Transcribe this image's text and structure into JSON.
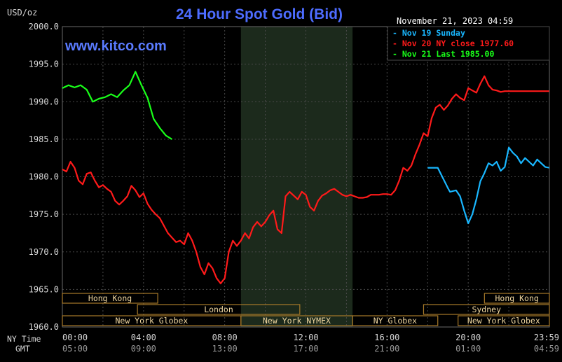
{
  "header": {
    "unit": "USD/oz",
    "title": "24 Hour Spot Gold (Bid)",
    "timestamp": "November 21, 2023 04:59",
    "watermark": "www.kitco.com"
  },
  "colors": {
    "background": "#000000",
    "grid": "#4a4a4a",
    "shade": "#1c2a1c",
    "title": "#4d6cff",
    "watermark": "#5a7bff",
    "axis_text": "#d8d8d8",
    "band_fill": "#a87a2a",
    "band_text": "#f0d7a0",
    "nov19": "#19b7ff",
    "nov20": "#ff1a1a",
    "nov21": "#19ff19"
  },
  "legend": {
    "items": [
      {
        "label": "Nov 19 Sunday",
        "color": "#19b7ff"
      },
      {
        "label": "Nov 20 NY close 1977.60",
        "color": "#ff1a1a"
      },
      {
        "label": "Nov 21 Last 1985.00",
        "color": "#19ff19"
      }
    ]
  },
  "axis": {
    "ny_time_label": "NY Time",
    "gmt_label": "GMT",
    "ny_ticks": [
      "00:00",
      "04:00",
      "08:00",
      "12:00",
      "16:00",
      "20:00",
      "23:59"
    ],
    "gmt_ticks": [
      "05:00",
      "09:00",
      "13:00",
      "17:00",
      "21:00",
      "01:00",
      "04:59"
    ],
    "y_ticks": [
      "2000.0",
      "1995.0",
      "1990.0",
      "1985.0",
      "1980.0",
      "1975.0",
      "1970.0",
      "1965.0",
      "1960.0"
    ]
  },
  "sessions": [
    {
      "label": "Hong Kong",
      "start": 0.0,
      "end": 4.7
    },
    {
      "label": "Hong Kong",
      "start": 20.8,
      "end": 24.0
    },
    {
      "label": "London",
      "start": 3.7,
      "end": 11.7
    },
    {
      "label": "Sydney",
      "start": 17.8,
      "end": 24.0
    },
    {
      "label": "New York Globex",
      "start": 0.0,
      "end": 8.8
    },
    {
      "label": "New York NYMEX",
      "start": 8.8,
      "end": 14.3
    },
    {
      "label": "NY Globex",
      "start": 14.3,
      "end": 18.5
    },
    {
      "label": "New York Globex",
      "start": 19.5,
      "end": 24.0
    }
  ],
  "chart_data": {
    "type": "line",
    "title": "24 Hour Spot Gold (Bid)",
    "ylabel": "USD/oz",
    "xlabel": "NY Time",
    "ylim": [
      1960,
      2000
    ],
    "xlim": [
      0,
      24
    ],
    "grid": true,
    "legend_position": "top-right",
    "shaded_range": [
      8.8,
      14.3
    ],
    "series": [
      {
        "name": "Nov 19 Sunday",
        "color": "#19b7ff",
        "x": [
          18.0,
          18.5,
          19.0,
          19.1,
          19.4,
          19.6,
          19.8,
          20.0,
          20.2,
          20.4,
          20.6,
          20.8,
          21.0,
          21.2,
          21.4,
          21.6,
          21.8,
          22.0,
          22.2,
          22.4,
          22.6,
          22.8,
          23.0,
          23.2,
          23.4,
          23.6,
          23.8,
          23.99
        ],
        "y": [
          1981.2,
          1981.2,
          1978.5,
          1978.0,
          1978.2,
          1977.4,
          1975.5,
          1973.8,
          1975.0,
          1977.0,
          1979.4,
          1980.5,
          1981.8,
          1981.5,
          1982.0,
          1980.8,
          1981.3,
          1983.9,
          1983.2,
          1982.7,
          1981.8,
          1982.5,
          1982.0,
          1981.5,
          1982.3,
          1981.8,
          1981.3,
          1981.2
        ]
      },
      {
        "name": "Nov 20 NY close 1977.60",
        "color": "#ff1a1a",
        "x": [
          0.0,
          0.2,
          0.4,
          0.6,
          0.8,
          1.0,
          1.2,
          1.4,
          1.6,
          1.8,
          2.0,
          2.2,
          2.4,
          2.6,
          2.8,
          3.0,
          3.2,
          3.4,
          3.6,
          3.8,
          4.0,
          4.2,
          4.4,
          4.6,
          4.8,
          5.0,
          5.2,
          5.4,
          5.6,
          5.8,
          6.0,
          6.2,
          6.4,
          6.6,
          6.8,
          7.0,
          7.2,
          7.4,
          7.6,
          7.8,
          8.0,
          8.2,
          8.4,
          8.6,
          8.8,
          9.0,
          9.2,
          9.4,
          9.6,
          9.8,
          10.0,
          10.2,
          10.4,
          10.6,
          10.8,
          11.0,
          11.2,
          11.4,
          11.6,
          11.8,
          12.0,
          12.2,
          12.4,
          12.6,
          12.8,
          13.0,
          13.2,
          13.4,
          13.6,
          13.8,
          14.0,
          14.2,
          14.4,
          14.6,
          14.8,
          15.0,
          15.2,
          15.4,
          15.6,
          15.8,
          16.0,
          16.2,
          16.4,
          16.6,
          16.8,
          17.0,
          17.2,
          17.4,
          17.6,
          17.8,
          18.0,
          18.2,
          18.4,
          18.6,
          18.8,
          19.0,
          19.2,
          19.4,
          19.6,
          19.8,
          20.0,
          20.2,
          20.4,
          20.6,
          20.8,
          21.0,
          21.2,
          21.4,
          21.6,
          21.8,
          22.0,
          22.2,
          22.4,
          22.6,
          22.8,
          23.0,
          23.2,
          23.4,
          23.6,
          23.8,
          23.99
        ],
        "y": [
          1981.0,
          1980.7,
          1982.0,
          1981.2,
          1979.5,
          1979.0,
          1980.4,
          1980.6,
          1979.5,
          1978.6,
          1978.9,
          1978.4,
          1978.0,
          1976.8,
          1976.3,
          1976.8,
          1977.4,
          1978.8,
          1978.2,
          1977.3,
          1977.8,
          1976.4,
          1975.6,
          1975.0,
          1974.5,
          1973.5,
          1972.5,
          1971.9,
          1971.3,
          1971.5,
          1971.0,
          1972.5,
          1971.5,
          1970.0,
          1968.0,
          1967.0,
          1968.5,
          1967.8,
          1966.5,
          1965.8,
          1966.5,
          1970.0,
          1971.5,
          1970.8,
          1971.5,
          1972.5,
          1971.8,
          1973.3,
          1974.0,
          1973.4,
          1974.0,
          1974.9,
          1975.5,
          1973.0,
          1972.5,
          1977.4,
          1978.0,
          1977.5,
          1977.0,
          1978.0,
          1977.6,
          1976.0,
          1975.5,
          1976.8,
          1977.5,
          1977.8,
          1978.2,
          1978.4,
          1978.0,
          1977.6,
          1977.4,
          1977.6,
          1977.4,
          1977.2,
          1977.2,
          1977.3,
          1977.6,
          1977.6,
          1977.6,
          1977.7,
          1977.7,
          1977.6,
          1978.2,
          1979.5,
          1981.2,
          1980.8,
          1981.5,
          1983.0,
          1984.3,
          1985.8,
          1985.4,
          1987.8,
          1989.2,
          1989.6,
          1988.9,
          1989.5,
          1990.4,
          1991.0,
          1990.5,
          1990.2,
          1991.8,
          1991.5,
          1991.2,
          1992.4,
          1993.4,
          1992.2,
          1991.6,
          1991.5,
          1991.3,
          1991.4,
          1991.4,
          1991.4,
          1991.4,
          1991.4,
          1991.4,
          1991.4,
          1991.4,
          1991.4,
          1991.4,
          1991.4,
          1991.4
        ]
      },
      {
        "name": "Nov 21 Last 1985.00",
        "color": "#19ff19",
        "x": [
          0.0,
          0.3,
          0.6,
          0.9,
          1.2,
          1.5,
          1.8,
          2.1,
          2.4,
          2.7,
          3.0,
          3.3,
          3.6,
          3.9,
          4.2,
          4.5,
          4.8,
          5.1,
          5.4
        ],
        "y": [
          1991.8,
          1992.2,
          1991.9,
          1992.2,
          1991.6,
          1990.0,
          1990.4,
          1990.6,
          1991.0,
          1990.6,
          1991.5,
          1992.2,
          1994.0,
          1992.2,
          1990.5,
          1987.7,
          1986.5,
          1985.5,
          1985.0
        ]
      }
    ]
  }
}
